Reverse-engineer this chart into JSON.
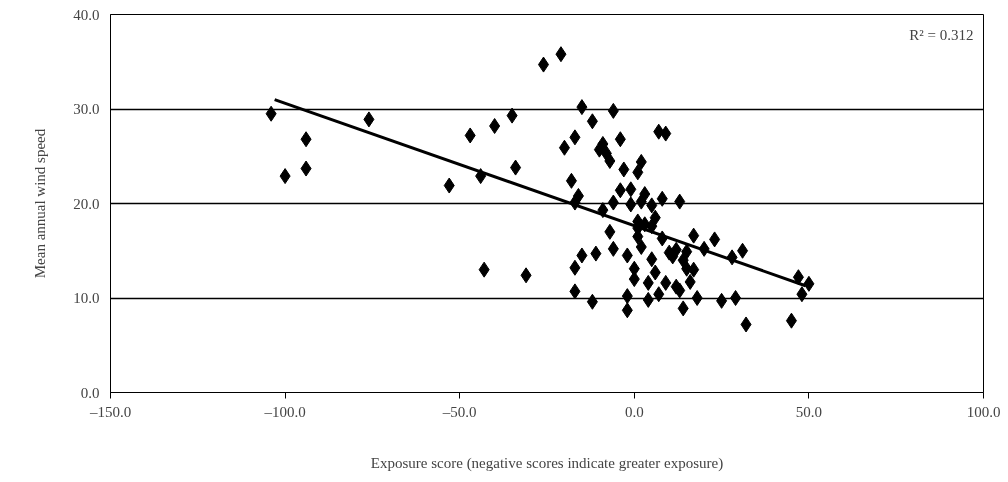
{
  "chart_data": {
    "type": "scatter",
    "xlabel": "Exposure score (negative scores indicate greater exposure)",
    "ylabel": "Mean annual wind speed",
    "xlim": [
      -150,
      100
    ],
    "xticks": [
      {
        "value": -150,
        "label": "–150.0"
      },
      {
        "value": -100,
        "label": "–100.0"
      },
      {
        "value": -50,
        "label": "–50.0"
      },
      {
        "value": 0,
        "label": "0.0"
      },
      {
        "value": 50,
        "label": "50.0"
      },
      {
        "value": 100,
        "label": "100.0"
      }
    ],
    "ylim": [
      0,
      40
    ],
    "yticks": [
      {
        "value": 0,
        "label": "0.0"
      },
      {
        "value": 10,
        "label": "10.0"
      },
      {
        "value": 20,
        "label": "20.0"
      },
      {
        "value": 30,
        "label": "30.0"
      },
      {
        "value": 40,
        "label": "40.0"
      }
    ],
    "grid": "y",
    "annotations": [
      "R² = 0.312"
    ],
    "series": [
      {
        "color": "#000000",
        "marker": "diamond",
        "x": [
          -104,
          -100,
          -94,
          -94,
          -76,
          -53,
          -47,
          -44,
          -43,
          -40,
          -35,
          -34,
          -31,
          -26,
          -21,
          -20,
          -18,
          -17,
          -16,
          -17,
          -17,
          -17,
          -15,
          -15,
          -12,
          -12,
          -11,
          -10,
          -9,
          -9,
          -8,
          -7,
          -7,
          -6,
          -6,
          -6,
          -4,
          -4,
          -3,
          -2,
          -2,
          -2,
          -1,
          -1,
          0,
          0,
          1,
          1,
          1,
          1,
          2,
          2,
          2,
          3,
          3,
          4,
          4,
          5,
          5,
          5,
          6,
          6,
          7,
          7,
          8,
          8,
          9,
          9,
          10,
          11,
          12,
          12,
          13,
          13,
          14,
          14,
          15,
          15,
          16,
          17,
          17,
          18,
          20,
          23,
          25,
          28,
          29,
          31,
          32,
          45,
          47,
          48,
          50
        ],
        "values": [
          29.5,
          22.9,
          23.7,
          26.8,
          28.9,
          21.9,
          27.2,
          22.9,
          13.0,
          28.2,
          29.3,
          23.8,
          12.4,
          34.7,
          35.8,
          25.9,
          22.4,
          20.1,
          20.8,
          27.0,
          10.7,
          13.2,
          14.5,
          30.2,
          28.7,
          9.6,
          14.7,
          25.7,
          19.3,
          26.3,
          25.3,
          17.0,
          24.5,
          29.8,
          15.2,
          20.1,
          26.8,
          21.4,
          23.6,
          14.5,
          10.2,
          8.7,
          21.5,
          19.9,
          13.1,
          12.0,
          23.3,
          16.5,
          18.1,
          17.4,
          15.4,
          24.4,
          20.2,
          17.8,
          21.0,
          11.6,
          9.8,
          14.1,
          19.8,
          17.6,
          18.5,
          12.7,
          27.6,
          10.4,
          16.3,
          20.5,
          27.4,
          11.6,
          14.8,
          14.4,
          15.1,
          11.2,
          20.2,
          10.8,
          14.0,
          8.9,
          13.1,
          14.9,
          11.7,
          16.6,
          13.0,
          10.0,
          15.2,
          16.2,
          9.7,
          14.3,
          10.0,
          15.0,
          7.2,
          7.6,
          12.2,
          10.4,
          11.5
        ]
      },
      {
        "type": "line",
        "color": "#000000",
        "line_style": "solid",
        "x": [
          -103,
          49
        ],
        "values": [
          31.0,
          11.3
        ]
      }
    ]
  }
}
